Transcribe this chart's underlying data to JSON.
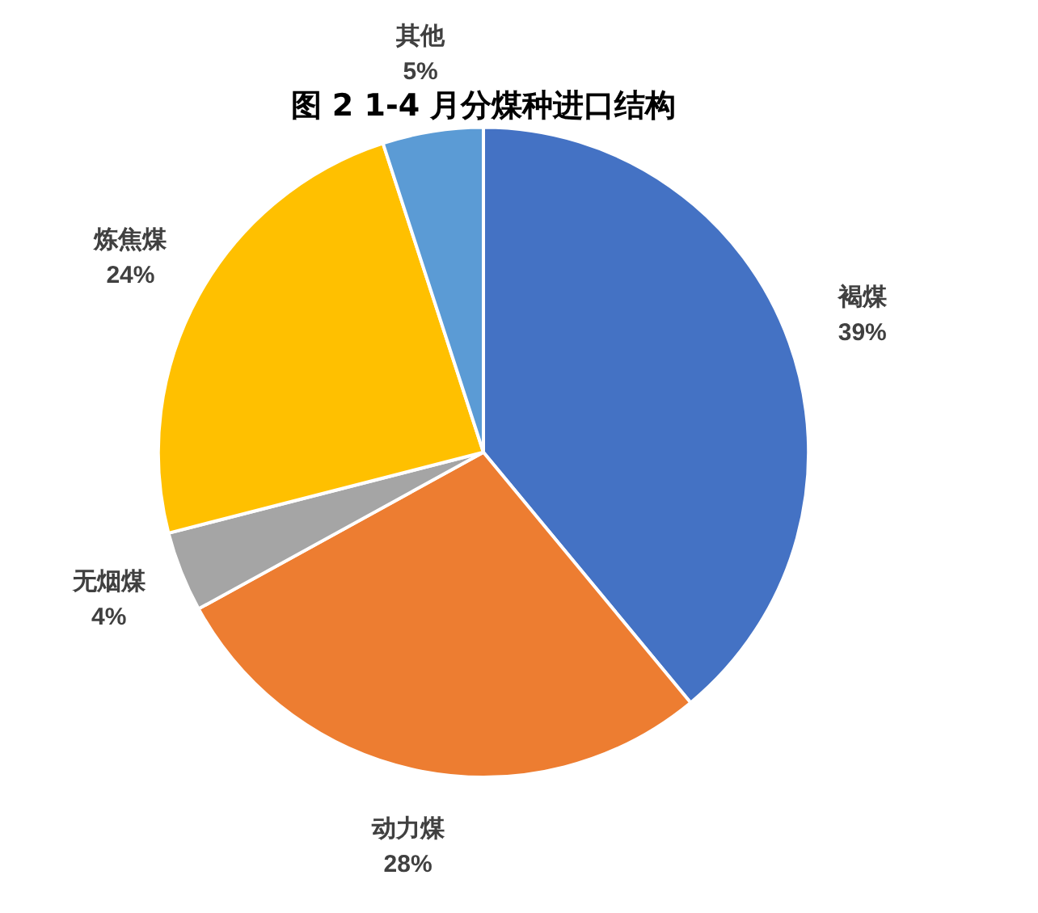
{
  "chart_data": {
    "type": "pie",
    "title": "图 2 1-4 月分煤种进口结构",
    "categories": [
      "褐煤",
      "动力煤",
      "无烟煤",
      "炼焦煤",
      "其他"
    ],
    "values": [
      39,
      28,
      4,
      24,
      5
    ],
    "value_labels": [
      "39%",
      "28%",
      "4%",
      "24%",
      "5%"
    ],
    "colors": [
      "#4472c4",
      "#ed7d31",
      "#a5a5a5",
      "#ffc000",
      "#5b9bd5"
    ]
  }
}
